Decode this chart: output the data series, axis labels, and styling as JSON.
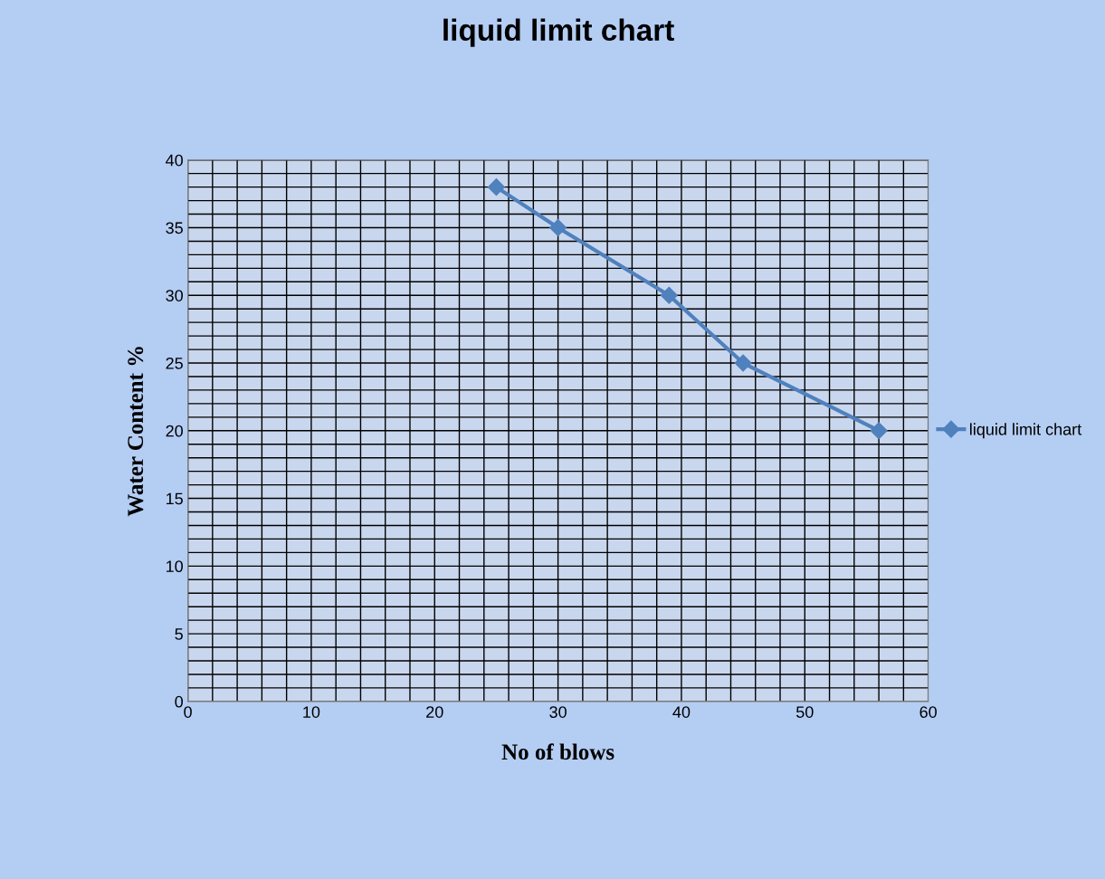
{
  "chart_data": {
    "type": "line",
    "title": "liquid limit chart",
    "xlabel": "No of blows",
    "ylabel": "Water Content %",
    "x": [
      25,
      30,
      39,
      45,
      56
    ],
    "series": [
      {
        "name": "liquid limit chart",
        "color": "#4f81bd",
        "values": [
          38,
          35,
          30,
          25,
          20
        ]
      }
    ],
    "xlim": [
      0,
      60
    ],
    "ylim": [
      0,
      40
    ],
    "xticks": [
      0,
      {
        "value": 2,
        "label": null
      },
      {
        "value": 4,
        "label": null
      },
      {
        "value": 6,
        "label": null
      },
      {
        "value": 8,
        "label": null
      },
      10,
      {
        "value": 12,
        "label": null
      },
      {
        "value": 14,
        "label": null
      },
      {
        "value": 16,
        "label": null
      },
      {
        "value": 18,
        "label": null
      },
      20,
      {
        "value": 22,
        "label": null
      },
      {
        "value": 24,
        "label": null
      },
      {
        "value": 26,
        "label": null
      },
      {
        "value": 28,
        "label": null
      },
      30,
      {
        "value": 32,
        "label": null
      },
      {
        "value": 34,
        "label": null
      },
      {
        "value": 36,
        "label": null
      },
      {
        "value": 38,
        "label": null
      },
      40,
      {
        "value": 42,
        "label": null
      },
      {
        "value": 44,
        "label": null
      },
      {
        "value": 46,
        "label": null
      },
      {
        "value": 48,
        "label": null
      },
      50,
      {
        "value": 52,
        "label": null
      },
      {
        "value": 54,
        "label": null
      },
      {
        "value": 56,
        "label": null
      },
      {
        "value": 58,
        "label": null
      },
      60
    ],
    "yticks": [
      0,
      {
        "value": 1,
        "label": null
      },
      {
        "value": 2,
        "label": null
      },
      {
        "value": 3,
        "label": null
      },
      {
        "value": 4,
        "label": null
      },
      5,
      {
        "value": 6,
        "label": null
      },
      {
        "value": 7,
        "label": null
      },
      {
        "value": 8,
        "label": null
      },
      {
        "value": 9,
        "label": null
      },
      10,
      {
        "value": 11,
        "label": null
      },
      {
        "value": 12,
        "label": null
      },
      {
        "value": 13,
        "label": null
      },
      {
        "value": 14,
        "label": null
      },
      15,
      {
        "value": 16,
        "label": null
      },
      {
        "value": 17,
        "label": null
      },
      {
        "value": 18,
        "label": null
      },
      {
        "value": 19,
        "label": null
      },
      20,
      {
        "value": 21,
        "label": null
      },
      {
        "value": 22,
        "label": null
      },
      {
        "value": 23,
        "label": null
      },
      {
        "value": 24,
        "label": null
      },
      25,
      {
        "value": 26,
        "label": null
      },
      {
        "value": 27,
        "label": null
      },
      {
        "value": 28,
        "label": null
      },
      {
        "value": 29,
        "label": null
      },
      30,
      {
        "value": 31,
        "label": null
      },
      {
        "value": 32,
        "label": null
      },
      {
        "value": 33,
        "label": null
      },
      {
        "value": 34,
        "label": null
      },
      35,
      {
        "value": 36,
        "label": null
      },
      {
        "value": 37,
        "label": null
      },
      {
        "value": 38,
        "label": null
      },
      {
        "value": 39,
        "label": null
      },
      40
    ],
    "grid": true,
    "legend": "right",
    "marker": "diamond",
    "line_style": "solid"
  }
}
